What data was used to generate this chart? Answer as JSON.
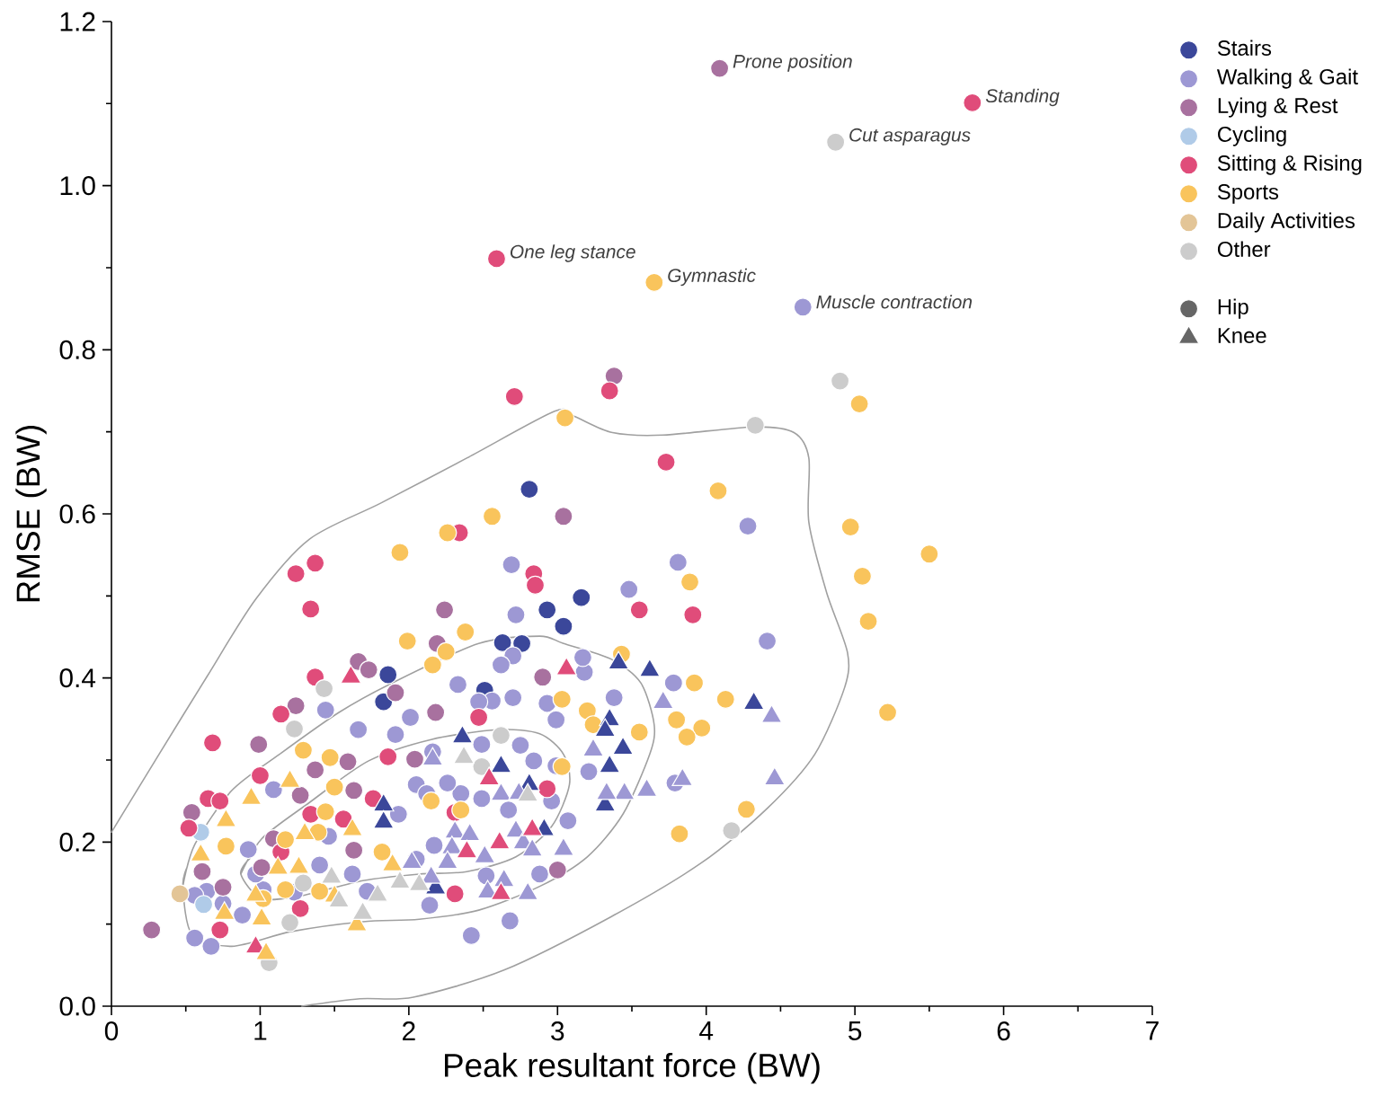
{
  "chart_data": {
    "type": "scatter",
    "xlabel": "Peak resultant force (BW)",
    "ylabel": "RMSE (BW)",
    "xlim": [
      0,
      7
    ],
    "ylim": [
      0,
      1.2
    ],
    "xticks": [
      0,
      {
        "value": 0.5,
        "label": null
      },
      1,
      {
        "value": 1.5,
        "label": null
      },
      2,
      {
        "value": 2.5,
        "label": null
      },
      3,
      {
        "value": 3.5,
        "label": null
      },
      4,
      {
        "value": 4.5,
        "label": null
      },
      5,
      {
        "value": 5.5,
        "label": null
      },
      6,
      {
        "value": 6.5,
        "label": null
      },
      7
    ],
    "yticks": [
      {
        "value": 0,
        "label": "0.0"
      },
      {
        "value": 0.1,
        "label": null
      },
      0.2,
      {
        "value": 0.3,
        "label": null
      },
      0.4,
      {
        "value": 0.5,
        "label": null
      },
      0.6,
      {
        "value": 0.7,
        "label": null
      },
      0.8,
      {
        "value": 0.9,
        "label": null
      },
      {
        "value": 1.0,
        "label": "1.0"
      },
      {
        "value": 1.1,
        "label": null
      },
      1.2
    ],
    "legend": "right",
    "annotations": [
      {
        "text": "Prone position",
        "x": 4.09,
        "y": 1.143
      },
      {
        "text": "Standing",
        "x": 5.79,
        "y": 1.101
      },
      {
        "text": "Cut asparagus",
        "x": 4.87,
        "y": 1.053
      },
      {
        "text": "One leg stance",
        "x": 2.59,
        "y": 0.911
      },
      {
        "text": "Gymnastic",
        "x": 3.65,
        "y": 0.882
      },
      {
        "text": "Muscle contraction",
        "x": 4.65,
        "y": 0.852
      }
    ],
    "series": [
      {
        "name": "Stairs",
        "color": "#3b479a",
        "marker": "circle",
        "x": [
          2.81,
          3.16,
          2.93,
          3.04,
          2.63,
          2.76,
          1.86,
          1.83,
          2.51
        ],
        "values": [
          0.63,
          0.498,
          0.483,
          0.463,
          0.443,
          0.442,
          0.404,
          0.371,
          0.385
        ]
      },
      {
        "name": "Walking & Gait",
        "color": "#9d98d4",
        "marker": "circle",
        "x": [
          4.65,
          4.28,
          3.81,
          3.48,
          4.41,
          3.78,
          3.79,
          2.69,
          2.72,
          2.7,
          2.62,
          3.18,
          2.33,
          2.56,
          2.47,
          2.01,
          2.7,
          2.93,
          2.99,
          3.17,
          3.38,
          3.21,
          3.07,
          2.68,
          2.42,
          2.14,
          2.75,
          2.96,
          2.84,
          2.99,
          2.49,
          2.49,
          2.67,
          2.35,
          2.26,
          2.16,
          2.05,
          2.12,
          1.93,
          2.17,
          2.52,
          2.88,
          2.05,
          1.44,
          1.66,
          1.09,
          1.46,
          0.92,
          1.4,
          1.23,
          1.62,
          1.72,
          1.02,
          0.97,
          0.88,
          0.75,
          0.64,
          0.56,
          0.56,
          0.67,
          1.91
        ],
        "values": [
          0.852,
          0.585,
          0.541,
          0.508,
          0.445,
          0.394,
          0.272,
          0.538,
          0.477,
          0.427,
          0.416,
          0.407,
          0.392,
          0.372,
          0.371,
          0.352,
          0.376,
          0.369,
          0.349,
          0.425,
          0.376,
          0.286,
          0.226,
          0.104,
          0.086,
          0.123,
          0.318,
          0.25,
          0.299,
          0.293,
          0.319,
          0.253,
          0.239,
          0.259,
          0.272,
          0.31,
          0.27,
          0.259,
          0.234,
          0.196,
          0.159,
          0.161,
          0.179,
          0.361,
          0.337,
          0.264,
          0.207,
          0.191,
          0.172,
          0.139,
          0.161,
          0.14,
          0.142,
          0.161,
          0.111,
          0.125,
          0.14,
          0.135,
          0.083,
          0.073,
          0.331
        ]
      },
      {
        "name": "Lying & Rest",
        "color": "#a8719f",
        "marker": "circle",
        "x": [
          4.09,
          3.38,
          3.04,
          2.24,
          2.19,
          2.9,
          1.91,
          2.18,
          3.0,
          2.04,
          1.66,
          1.73,
          1.24,
          0.99,
          1.59,
          1.37,
          1.27,
          1.63,
          0.54,
          1.09,
          1.63,
          1.01,
          0.75,
          0.27,
          0.61
        ],
        "values": [
          1.143,
          0.768,
          0.597,
          0.483,
          0.442,
          0.401,
          0.382,
          0.358,
          0.166,
          0.301,
          0.42,
          0.41,
          0.366,
          0.319,
          0.298,
          0.288,
          0.257,
          0.263,
          0.236,
          0.204,
          0.19,
          0.169,
          0.145,
          0.093,
          0.164
        ]
      },
      {
        "name": "Cycling",
        "color": "#b0cbe8",
        "marker": "circle",
        "x": [
          0.6,
          0.62
        ],
        "values": [
          0.212,
          0.124
        ]
      },
      {
        "name": "Sitting & Rising",
        "color": "#e04c7a",
        "marker": "circle",
        "x": [
          5.79,
          2.59,
          3.35,
          2.71,
          3.73,
          3.55,
          3.91,
          2.34,
          2.84,
          2.85,
          2.47,
          2.31,
          2.93,
          2.31,
          1.86,
          1.76,
          1.37,
          1.24,
          1.34,
          1.37,
          1.14,
          0.68,
          1.0,
          0.65,
          0.73,
          0.52,
          1.34,
          1.56,
          1.14,
          1.27,
          0.73
        ],
        "values": [
          1.101,
          0.911,
          0.75,
          0.743,
          0.663,
          0.483,
          0.477,
          0.577,
          0.527,
          0.513,
          0.352,
          0.137,
          0.265,
          0.236,
          0.304,
          0.253,
          0.54,
          0.527,
          0.484,
          0.401,
          0.356,
          0.321,
          0.281,
          0.253,
          0.25,
          0.217,
          0.234,
          0.228,
          0.188,
          0.119,
          0.093
        ]
      },
      {
        "name": "Sports",
        "color": "#f9c45c",
        "marker": "circle",
        "x": [
          3.65,
          5.03,
          3.05,
          4.08,
          2.56,
          5.5,
          5.05,
          4.97,
          5.09,
          5.22,
          3.89,
          3.43,
          3.92,
          4.13,
          3.8,
          3.97,
          3.87,
          3.55,
          4.27,
          3.82,
          2.26,
          1.94,
          2.38,
          1.99,
          2.25,
          2.16,
          3.03,
          3.2,
          3.24,
          3.03,
          2.35,
          2.15,
          1.82,
          1.29,
          1.47,
          1.5,
          1.44,
          1.17,
          1.39,
          0.77,
          1.4,
          1.17,
          1.02
        ],
        "values": [
          0.882,
          0.734,
          0.717,
          0.628,
          0.597,
          0.551,
          0.524,
          0.584,
          0.469,
          0.358,
          0.517,
          0.429,
          0.394,
          0.374,
          0.349,
          0.339,
          0.328,
          0.334,
          0.24,
          0.21,
          0.577,
          0.553,
          0.456,
          0.445,
          0.432,
          0.416,
          0.374,
          0.36,
          0.343,
          0.292,
          0.239,
          0.25,
          0.188,
          0.312,
          0.303,
          0.267,
          0.237,
          0.203,
          0.212,
          0.195,
          0.14,
          0.142,
          0.131
        ]
      },
      {
        "name": "Daily Activities",
        "color": "#e3c597",
        "marker": "circle",
        "x": [
          0.46
        ],
        "values": [
          0.137
        ]
      },
      {
        "name": "Other",
        "color": "#cccccc",
        "marker": "circle",
        "x": [
          4.87,
          4.9,
          4.33,
          4.17,
          2.62,
          2.49,
          1.43,
          1.23,
          1.29,
          1.2,
          1.06
        ],
        "values": [
          1.053,
          0.762,
          0.708,
          0.214,
          0.33,
          0.292,
          0.387,
          0.338,
          0.15,
          0.102,
          0.053
        ]
      },
      {
        "color": "#3b479a",
        "marker": "triangle",
        "x": [
          3.41,
          3.62,
          4.32,
          3.44,
          3.35,
          3.32,
          3.35,
          3.32,
          2.62,
          2.81,
          2.36,
          1.83,
          1.83,
          2.91,
          2.18
        ],
        "values": [
          0.418,
          0.409,
          0.369,
          0.314,
          0.349,
          0.336,
          0.292,
          0.245,
          0.292,
          0.27,
          0.328,
          0.245,
          0.224,
          0.215,
          0.144
        ]
      },
      {
        "color": "#9d98d4",
        "marker": "triangle",
        "x": [
          3.71,
          4.44,
          3.84,
          4.46,
          3.6,
          3.45,
          3.24,
          3.33,
          3.04,
          2.62,
          2.74,
          2.16,
          2.31,
          2.41,
          2.29,
          2.51,
          2.72,
          2.77,
          2.83,
          2.26,
          2.64,
          2.53,
          2.8,
          2.15,
          2.02
        ],
        "values": [
          0.37,
          0.353,
          0.276,
          0.277,
          0.263,
          0.259,
          0.312,
          0.259,
          0.191,
          0.258,
          0.259,
          0.301,
          0.212,
          0.209,
          0.193,
          0.182,
          0.213,
          0.199,
          0.19,
          0.175,
          0.153,
          0.139,
          0.137,
          0.157,
          0.175
        ]
      },
      {
        "color": "#e04c7a",
        "marker": "triangle",
        "x": [
          3.06,
          2.54,
          2.39,
          2.61,
          2.83,
          2.62,
          1.61,
          0.97
        ],
        "values": [
          0.411,
          0.277,
          0.188,
          0.199,
          0.215,
          0.137,
          0.401,
          0.072
        ]
      },
      {
        "color": "#f9c45c",
        "marker": "triangle",
        "x": [
          1.89,
          1.2,
          0.94,
          0.77,
          1.62,
          1.3,
          0.6,
          1.12,
          1.26,
          1.5,
          1.65,
          0.97,
          0.76,
          1.01,
          1.04
        ],
        "values": [
          0.172,
          0.274,
          0.253,
          0.226,
          0.215,
          0.21,
          0.184,
          0.168,
          0.169,
          0.134,
          0.099,
          0.135,
          0.113,
          0.106,
          0.064
        ]
      },
      {
        "color": "#cccccc",
        "marker": "triangle",
        "x": [
          2.8,
          2.37,
          1.94,
          2.07,
          1.79,
          1.48,
          1.53,
          1.69
        ],
        "values": [
          0.257,
          0.303,
          0.151,
          0.148,
          0.135,
          0.157,
          0.128,
          0.113
        ]
      },
      {
        "type": "line",
        "color": "#a0a0a0",
        "x": [
          0,
          0.32,
          0.64,
          0.97,
          1.33,
          1.81,
          2.39,
          2.98,
          3.11,
          3.37,
          3.71,
          4.32,
          4.59,
          4.69,
          4.69,
          4.81,
          4.95,
          4.93,
          4.73,
          4.41,
          3.97,
          3.36,
          2.64,
          2.03,
          1.67,
          1.28
        ],
        "values": [
          0.212,
          0.307,
          0.401,
          0.496,
          0.569,
          0.613,
          0.668,
          0.725,
          0.719,
          0.699,
          0.696,
          0.706,
          0.699,
          0.668,
          0.59,
          0.504,
          0.431,
          0.388,
          0.307,
          0.241,
          0.175,
          0.109,
          0.044,
          0.011,
          0.009,
          0.0
        ]
      },
      {
        "type": "line",
        "color": "#a0a0a0",
        "x": [
          0.48,
          0.56,
          0.81,
          1.13,
          1.53,
          1.89,
          2.47,
          2.88,
          3.04,
          3.36,
          3.56,
          3.65,
          3.62,
          3.44,
          3.2,
          2.88,
          2.47,
          2.07,
          1.69,
          1.21,
          0.81,
          0.54,
          0.48,
          0.51
        ],
        "values": [
          0.146,
          0.197,
          0.263,
          0.307,
          0.358,
          0.394,
          0.442,
          0.451,
          0.442,
          0.423,
          0.394,
          0.343,
          0.307,
          0.234,
          0.182,
          0.146,
          0.117,
          0.106,
          0.103,
          0.091,
          0.073,
          0.088,
          0.146,
          0.17
        ]
      },
      {
        "type": "line",
        "color": "#a0a0a0",
        "x": [
          0.87,
          1.01,
          1.33,
          1.73,
          2.15,
          2.6,
          2.88,
          3.04,
          3.08,
          2.96,
          2.72,
          2.39,
          2.07,
          1.69,
          1.29,
          1.01,
          0.87,
          0.93
        ],
        "values": [
          0.161,
          0.204,
          0.248,
          0.299,
          0.325,
          0.337,
          0.332,
          0.307,
          0.27,
          0.219,
          0.182,
          0.164,
          0.161,
          0.153,
          0.135,
          0.131,
          0.161,
          0.18
        ]
      },
      {
        "name": "Hip",
        "color": "#666666",
        "marker": "circle"
      },
      {
        "name": "Knee",
        "color": "#666666",
        "marker": "triangle"
      }
    ]
  }
}
